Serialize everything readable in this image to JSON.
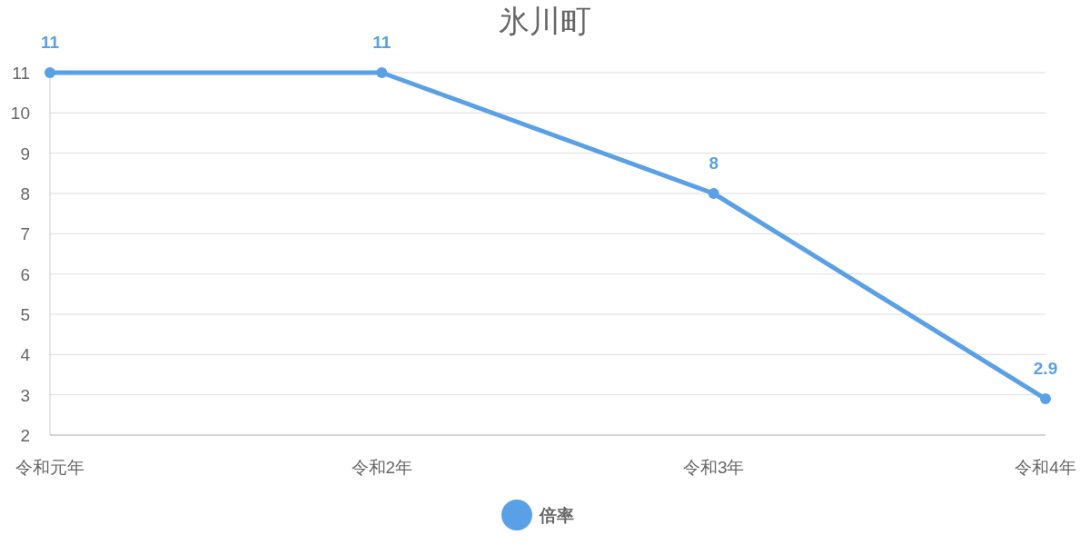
{
  "chart_data": {
    "type": "line",
    "title": "氷川町",
    "categories": [
      "令和元年",
      "令和2年",
      "令和3年",
      "令和4年"
    ],
    "series": [
      {
        "name": "倍率",
        "color": "#5aa0e6",
        "values": [
          11,
          11,
          8,
          2.9
        ]
      }
    ],
    "ylim": [
      2,
      11
    ],
    "yticks": [
      2,
      3,
      4,
      5,
      6,
      7,
      8,
      9,
      10,
      11
    ],
    "grid": "y",
    "legend": "bottom",
    "marker": "circle",
    "line_style": "solid",
    "data_labels": true
  }
}
